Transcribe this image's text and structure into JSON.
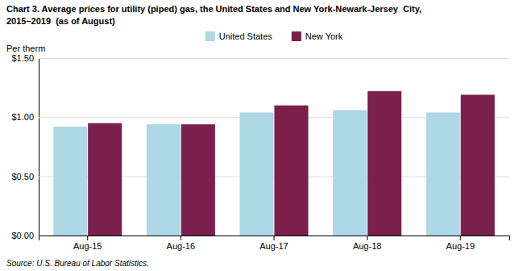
{
  "chart_data": {
    "type": "bar",
    "title": "Chart 3. Average prices for utility (piped) gas, the United States and New York-Newark-Jersey  City,",
    "subtitle": "2015–2019  (as of August)",
    "ylabel": "Per therm",
    "source": "Source: U.S. Bureau of Labor Statistics.",
    "categories": [
      "Aug-15",
      "Aug-16",
      "Aug-17",
      "Aug-18",
      "Aug-19"
    ],
    "series": [
      {
        "name": "United States",
        "color": "#ADD8E6",
        "values": [
          0.92,
          0.94,
          1.04,
          1.06,
          1.04
        ]
      },
      {
        "name": "New York",
        "color": "#7B1F4E",
        "values": [
          0.95,
          0.94,
          1.1,
          1.22,
          1.19
        ]
      }
    ],
    "ylim": [
      0.0,
      1.5
    ],
    "yticks": [
      {
        "value": 0.0,
        "label": "$0.00"
      },
      {
        "value": 0.5,
        "label": "$0.50"
      },
      {
        "value": 1.0,
        "label": "$1.00"
      },
      {
        "value": 1.5,
        "label": "$1.50"
      }
    ],
    "grid": true,
    "legend": "top"
  }
}
